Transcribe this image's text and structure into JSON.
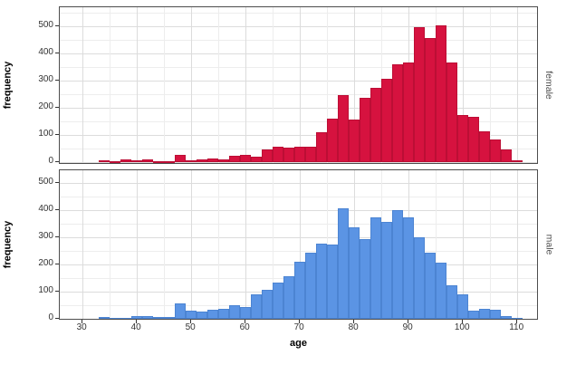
{
  "figure": {
    "background": "#ffffff",
    "panel_border_color": "#4d4d4d",
    "grid_major_color": "#dcdcdc",
    "grid_minor_color": "#ededed",
    "tick_mark_color": "#333333",
    "tick_label_color": "#333333",
    "axis_title_color": "#000000",
    "strip_text_color": "#4d4d4d"
  },
  "chart_data": {
    "type": "bar",
    "subtype": "faceted-histogram",
    "title": "",
    "xlabel": "age",
    "ylabel": "frequency",
    "legend": "none",
    "grid": "major-and-minor",
    "x_ticks": [
      30,
      40,
      50,
      60,
      70,
      80,
      90,
      100,
      110
    ],
    "y_ticks": [
      0,
      100,
      200,
      300,
      400,
      500
    ],
    "x_minor_ticks": [
      35,
      45,
      55,
      65,
      75,
      85,
      95,
      105
    ],
    "y_minor_step": 50,
    "x_range": [
      25.8,
      114.0
    ],
    "bin_width": 2,
    "bin_starts": [
      33,
      35,
      37,
      39,
      41,
      43,
      45,
      47,
      49,
      51,
      53,
      55,
      57,
      59,
      61,
      63,
      65,
      67,
      69,
      71,
      73,
      75,
      77,
      79,
      81,
      83,
      85,
      87,
      89,
      91,
      93,
      95,
      97,
      99,
      101,
      103,
      105,
      107,
      109
    ],
    "facets": [
      {
        "label": "female",
        "fill": "#d6123f",
        "stroke": "#bc0e35",
        "ylim": [
          0,
          574
        ],
        "values": [
          6,
          4,
          10,
          7,
          9,
          2,
          3,
          28,
          5,
          10,
          12,
          11,
          22,
          25,
          20,
          45,
          55,
          52,
          58,
          55,
          110,
          160,
          245,
          158,
          235,
          272,
          305,
          360,
          368,
          497,
          455,
          503,
          365,
          172,
          165,
          113,
          84,
          47,
          8
        ]
      },
      {
        "label": "male",
        "fill": "#5b94e4",
        "stroke": "#4c84d2",
        "ylim": [
          0,
          548
        ],
        "values": [
          7,
          2,
          2,
          11,
          9,
          6,
          8,
          55,
          30,
          28,
          33,
          37,
          50,
          44,
          91,
          107,
          133,
          158,
          210,
          244,
          277,
          272,
          405,
          338,
          294,
          373,
          357,
          399,
          372,
          299,
          244,
          205,
          124,
          91,
          29,
          35,
          32,
          11,
          2
        ]
      }
    ]
  }
}
